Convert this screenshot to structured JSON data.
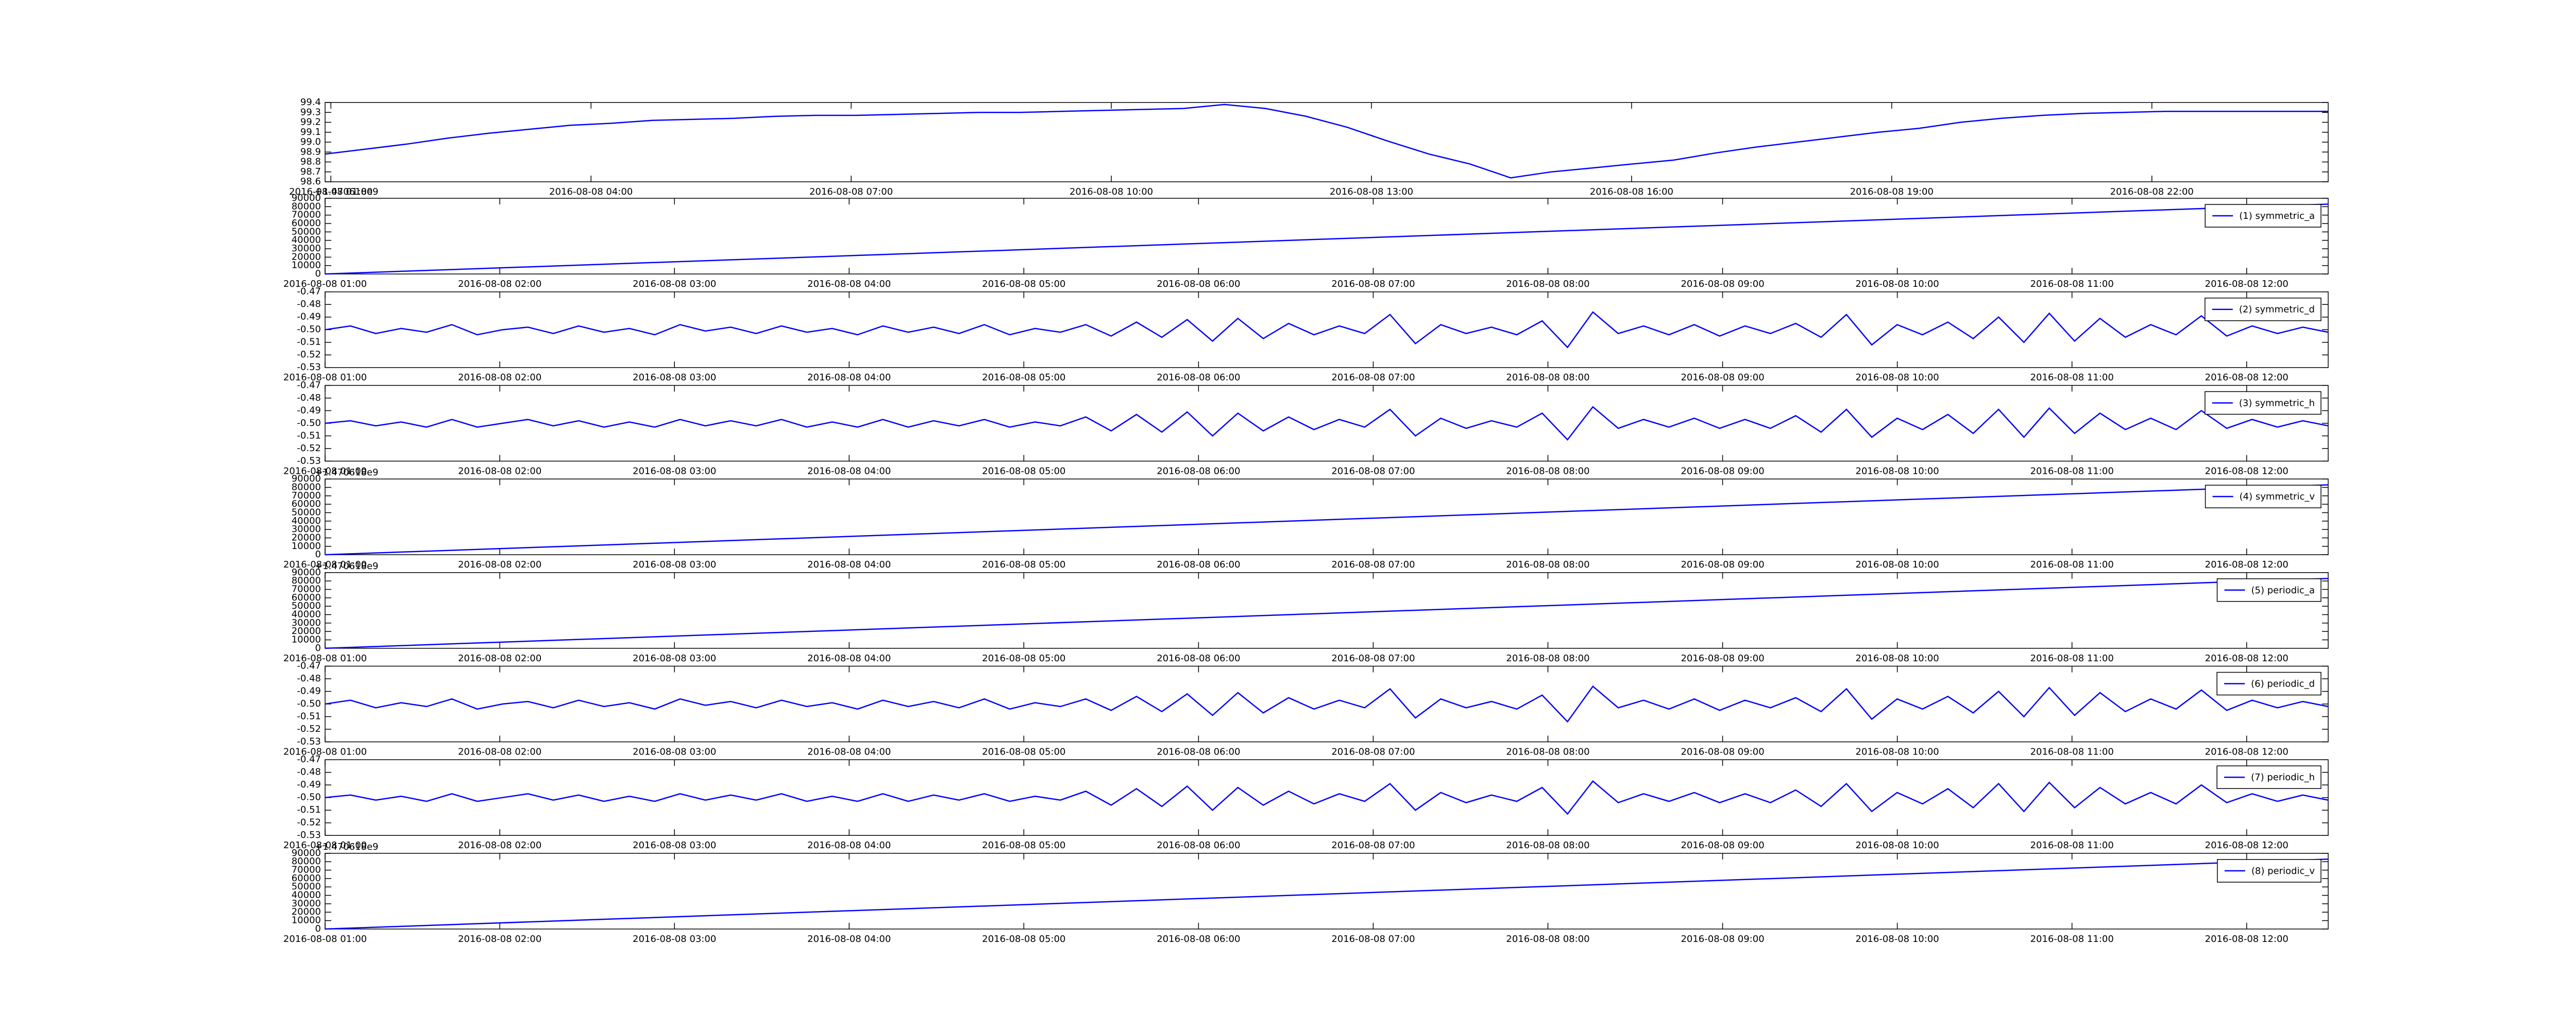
{
  "chart_data": [
    {
      "type": "line",
      "xlim": [
        "2016-08-08 00:56",
        "2016-08-09 00:02"
      ],
      "xticks": [
        "2016-08-08 01:00",
        "2016-08-08 04:00",
        "2016-08-08 07:00",
        "2016-08-08 10:00",
        "2016-08-08 13:00",
        "2016-08-08 16:00",
        "2016-08-08 19:00",
        "2016-08-08 22:00"
      ],
      "ylim": [
        98.6,
        99.4
      ],
      "yticks": [
        98.6,
        98.7,
        98.8,
        98.9,
        {
          "value": 99,
          "label": "99.0"
        },
        99.1,
        99.2,
        99.3,
        99.4
      ],
      "series": [
        {
          "color": "#0000ff",
          "values": [
            98.88,
            98.93,
            98.98,
            99.04,
            99.09,
            99.13,
            99.17,
            99.19,
            99.22,
            99.23,
            99.24,
            99.26,
            99.27,
            99.27,
            99.28,
            99.29,
            99.3,
            99.3,
            99.31,
            99.32,
            99.33,
            99.34,
            99.38,
            99.34,
            99.26,
            99.15,
            99.01,
            98.88,
            98.78,
            98.64,
            98.7,
            98.74,
            98.78,
            98.82,
            98.89,
            98.95,
            99.0,
            99.05,
            99.1,
            99.14,
            99.2,
            99.24,
            99.27,
            99.29,
            99.3,
            99.31,
            99.31,
            99.31,
            99.31,
            99.31
          ]
        }
      ]
    },
    {
      "type": "line",
      "xlim": [
        "2016-08-08 01:00",
        "2016-08-08 12:28"
      ],
      "xticks": [
        "2016-08-08 01:00",
        "2016-08-08 02:00",
        "2016-08-08 03:00",
        "2016-08-08 04:00",
        "2016-08-08 05:00",
        "2016-08-08 06:00",
        "2016-08-08 07:00",
        "2016-08-08 08:00",
        "2016-08-08 09:00",
        "2016-08-08 10:00",
        "2016-08-08 11:00",
        "2016-08-08 12:00"
      ],
      "ylim": [
        0,
        90000
      ],
      "yticks": [
        0,
        10000,
        20000,
        30000,
        40000,
        50000,
        60000,
        70000,
        80000,
        90000
      ],
      "y_offset": "+1.470618e9",
      "legend": "upper right",
      "series": [
        {
          "name": "(1) symmetric_a",
          "color": "#0000ff",
          "values": [
            0,
            83000
          ]
        }
      ]
    },
    {
      "type": "line",
      "xlim": [
        "2016-08-08 01:00",
        "2016-08-08 12:28"
      ],
      "xticks": [
        "2016-08-08 01:00",
        "2016-08-08 02:00",
        "2016-08-08 03:00",
        "2016-08-08 04:00",
        "2016-08-08 05:00",
        "2016-08-08 06:00",
        "2016-08-08 07:00",
        "2016-08-08 08:00",
        "2016-08-08 09:00",
        "2016-08-08 10:00",
        "2016-08-08 11:00",
        "2016-08-08 12:00"
      ],
      "ylim": [
        -0.53,
        -0.47
      ],
      "yticks": [
        -0.53,
        -0.52,
        -0.51,
        {
          "value": -0.5,
          "label": "-0.50"
        },
        -0.49,
        -0.48,
        -0.47
      ],
      "legend": "upper right",
      "series": [
        {
          "name": "(2) symmetric_d",
          "color": "#0000ff",
          "values": [
            -0.5,
            -0.497,
            -0.503,
            -0.499,
            -0.502,
            -0.496,
            -0.504,
            -0.5,
            -0.498,
            -0.503,
            -0.497,
            -0.502,
            -0.499,
            -0.504,
            -0.496,
            -0.501,
            -0.498,
            -0.503,
            -0.497,
            -0.502,
            -0.499,
            -0.504,
            -0.497,
            -0.502,
            -0.498,
            -0.503,
            -0.496,
            -0.504,
            -0.499,
            -0.502,
            -0.496,
            -0.505,
            -0.494,
            -0.506,
            -0.492,
            -0.509,
            -0.491,
            -0.507,
            -0.495,
            -0.504,
            -0.497,
            -0.503,
            -0.488,
            -0.511,
            -0.496,
            -0.503,
            -0.498,
            -0.504,
            -0.493,
            -0.514,
            -0.486,
            -0.503,
            -0.497,
            -0.504,
            -0.496,
            -0.505,
            -0.497,
            -0.503,
            -0.495,
            -0.506,
            -0.488,
            -0.512,
            -0.496,
            -0.504,
            -0.494,
            -0.507,
            -0.49,
            -0.51,
            -0.487,
            -0.509,
            -0.491,
            -0.506,
            -0.496,
            -0.504,
            -0.489,
            -0.505,
            -0.497,
            -0.503,
            -0.498,
            -0.502
          ]
        }
      ]
    },
    {
      "type": "line",
      "xlim": [
        "2016-08-08 01:00",
        "2016-08-08 12:28"
      ],
      "xticks": [
        "2016-08-08 01:00",
        "2016-08-08 02:00",
        "2016-08-08 03:00",
        "2016-08-08 04:00",
        "2016-08-08 05:00",
        "2016-08-08 06:00",
        "2016-08-08 07:00",
        "2016-08-08 08:00",
        "2016-08-08 09:00",
        "2016-08-08 10:00",
        "2016-08-08 11:00",
        "2016-08-08 12:00"
      ],
      "ylim": [
        -0.53,
        -0.47
      ],
      "yticks": [
        -0.53,
        -0.52,
        -0.51,
        {
          "value": -0.5,
          "label": "-0.50"
        },
        -0.49,
        -0.48,
        -0.47
      ],
      "legend": "upper right",
      "series": [
        {
          "name": "(3) symmetric_h",
          "color": "#0000ff",
          "values": [
            -0.5,
            -0.498,
            -0.502,
            -0.499,
            -0.503,
            -0.497,
            -0.503,
            -0.5,
            -0.497,
            -0.502,
            -0.498,
            -0.503,
            -0.499,
            -0.503,
            -0.497,
            -0.502,
            -0.498,
            -0.502,
            -0.497,
            -0.503,
            -0.499,
            -0.503,
            -0.497,
            -0.503,
            -0.498,
            -0.502,
            -0.497,
            -0.503,
            -0.499,
            -0.502,
            -0.495,
            -0.506,
            -0.493,
            -0.507,
            -0.491,
            -0.51,
            -0.492,
            -0.506,
            -0.495,
            -0.505,
            -0.497,
            -0.503,
            -0.489,
            -0.51,
            -0.496,
            -0.504,
            -0.498,
            -0.503,
            -0.492,
            -0.513,
            -0.487,
            -0.504,
            -0.497,
            -0.503,
            -0.496,
            -0.504,
            -0.497,
            -0.504,
            -0.494,
            -0.507,
            -0.489,
            -0.511,
            -0.496,
            -0.505,
            -0.493,
            -0.508,
            -0.489,
            -0.511,
            -0.488,
            -0.508,
            -0.492,
            -0.505,
            -0.496,
            -0.505,
            -0.49,
            -0.504,
            -0.497,
            -0.503,
            -0.498,
            -0.502
          ]
        }
      ]
    },
    {
      "type": "line",
      "xlim": [
        "2016-08-08 01:00",
        "2016-08-08 12:28"
      ],
      "xticks": [
        "2016-08-08 01:00",
        "2016-08-08 02:00",
        "2016-08-08 03:00",
        "2016-08-08 04:00",
        "2016-08-08 05:00",
        "2016-08-08 06:00",
        "2016-08-08 07:00",
        "2016-08-08 08:00",
        "2016-08-08 09:00",
        "2016-08-08 10:00",
        "2016-08-08 11:00",
        "2016-08-08 12:00"
      ],
      "ylim": [
        0,
        90000
      ],
      "yticks": [
        0,
        10000,
        20000,
        30000,
        40000,
        50000,
        60000,
        70000,
        80000,
        90000
      ],
      "y_offset": "+1.470618e9",
      "legend": "upper right",
      "series": [
        {
          "name": "(4) symmetric_v",
          "color": "#0000ff",
          "values": [
            0,
            83000
          ]
        }
      ]
    },
    {
      "type": "line",
      "xlim": [
        "2016-08-08 01:00",
        "2016-08-08 12:28"
      ],
      "xticks": [
        "2016-08-08 01:00",
        "2016-08-08 02:00",
        "2016-08-08 03:00",
        "2016-08-08 04:00",
        "2016-08-08 05:00",
        "2016-08-08 06:00",
        "2016-08-08 07:00",
        "2016-08-08 08:00",
        "2016-08-08 09:00",
        "2016-08-08 10:00",
        "2016-08-08 11:00",
        "2016-08-08 12:00"
      ],
      "ylim": [
        0,
        90000
      ],
      "yticks": [
        0,
        10000,
        20000,
        30000,
        40000,
        50000,
        60000,
        70000,
        80000,
        90000
      ],
      "y_offset": "+1.470618e9",
      "legend": "upper right",
      "series": [
        {
          "name": "(5) periodic_a",
          "color": "#0000ff",
          "values": [
            0,
            83000
          ]
        }
      ]
    },
    {
      "type": "line",
      "xlim": [
        "2016-08-08 01:00",
        "2016-08-08 12:28"
      ],
      "xticks": [
        "2016-08-08 01:00",
        "2016-08-08 02:00",
        "2016-08-08 03:00",
        "2016-08-08 04:00",
        "2016-08-08 05:00",
        "2016-08-08 06:00",
        "2016-08-08 07:00",
        "2016-08-08 08:00",
        "2016-08-08 09:00",
        "2016-08-08 10:00",
        "2016-08-08 11:00",
        "2016-08-08 12:00"
      ],
      "ylim": [
        -0.53,
        -0.47
      ],
      "yticks": [
        -0.53,
        -0.52,
        -0.51,
        {
          "value": -0.5,
          "label": "-0.50"
        },
        -0.49,
        -0.48,
        -0.47
      ],
      "legend": "upper right",
      "series": [
        {
          "name": "(6) periodic_d",
          "color": "#0000ff",
          "values": [
            -0.5,
            -0.497,
            -0.503,
            -0.499,
            -0.502,
            -0.496,
            -0.504,
            -0.5,
            -0.498,
            -0.503,
            -0.497,
            -0.502,
            -0.499,
            -0.504,
            -0.496,
            -0.501,
            -0.498,
            -0.503,
            -0.497,
            -0.502,
            -0.499,
            -0.504,
            -0.497,
            -0.502,
            -0.498,
            -0.503,
            -0.496,
            -0.504,
            -0.499,
            -0.502,
            -0.496,
            -0.505,
            -0.494,
            -0.506,
            -0.492,
            -0.509,
            -0.491,
            -0.507,
            -0.495,
            -0.504,
            -0.497,
            -0.503,
            -0.488,
            -0.511,
            -0.496,
            -0.503,
            -0.498,
            -0.504,
            -0.493,
            -0.514,
            -0.486,
            -0.503,
            -0.497,
            -0.504,
            -0.496,
            -0.505,
            -0.497,
            -0.503,
            -0.495,
            -0.506,
            -0.488,
            -0.512,
            -0.496,
            -0.504,
            -0.494,
            -0.507,
            -0.49,
            -0.51,
            -0.487,
            -0.509,
            -0.491,
            -0.506,
            -0.496,
            -0.504,
            -0.489,
            -0.505,
            -0.497,
            -0.503,
            -0.498,
            -0.502
          ]
        }
      ]
    },
    {
      "type": "line",
      "xlim": [
        "2016-08-08 01:00",
        "2016-08-08 12:28"
      ],
      "xticks": [
        "2016-08-08 01:00",
        "2016-08-08 02:00",
        "2016-08-08 03:00",
        "2016-08-08 04:00",
        "2016-08-08 05:00",
        "2016-08-08 06:00",
        "2016-08-08 07:00",
        "2016-08-08 08:00",
        "2016-08-08 09:00",
        "2016-08-08 10:00",
        "2016-08-08 11:00",
        "2016-08-08 12:00"
      ],
      "ylim": [
        -0.53,
        -0.47
      ],
      "yticks": [
        -0.53,
        -0.52,
        -0.51,
        {
          "value": -0.5,
          "label": "-0.50"
        },
        -0.49,
        -0.48,
        -0.47
      ],
      "legend": "upper right",
      "series": [
        {
          "name": "(7) periodic_h",
          "color": "#0000ff",
          "values": [
            -0.5,
            -0.498,
            -0.502,
            -0.499,
            -0.503,
            -0.497,
            -0.503,
            -0.5,
            -0.497,
            -0.502,
            -0.498,
            -0.503,
            -0.499,
            -0.503,
            -0.497,
            -0.502,
            -0.498,
            -0.502,
            -0.497,
            -0.503,
            -0.499,
            -0.503,
            -0.497,
            -0.503,
            -0.498,
            -0.502,
            -0.497,
            -0.503,
            -0.499,
            -0.502,
            -0.495,
            -0.506,
            -0.493,
            -0.507,
            -0.491,
            -0.51,
            -0.492,
            -0.506,
            -0.495,
            -0.505,
            -0.497,
            -0.503,
            -0.489,
            -0.51,
            -0.496,
            -0.504,
            -0.498,
            -0.503,
            -0.492,
            -0.513,
            -0.487,
            -0.504,
            -0.497,
            -0.503,
            -0.496,
            -0.504,
            -0.497,
            -0.504,
            -0.494,
            -0.507,
            -0.489,
            -0.511,
            -0.496,
            -0.505,
            -0.493,
            -0.508,
            -0.489,
            -0.511,
            -0.488,
            -0.508,
            -0.492,
            -0.505,
            -0.496,
            -0.505,
            -0.49,
            -0.504,
            -0.497,
            -0.503,
            -0.498,
            -0.502
          ]
        }
      ]
    },
    {
      "type": "line",
      "xlim": [
        "2016-08-08 01:00",
        "2016-08-08 12:28"
      ],
      "xticks": [
        "2016-08-08 01:00",
        "2016-08-08 02:00",
        "2016-08-08 03:00",
        "2016-08-08 04:00",
        "2016-08-08 05:00",
        "2016-08-08 06:00",
        "2016-08-08 07:00",
        "2016-08-08 08:00",
        "2016-08-08 09:00",
        "2016-08-08 10:00",
        "2016-08-08 11:00",
        "2016-08-08 12:00"
      ],
      "ylim": [
        0,
        90000
      ],
      "yticks": [
        0,
        10000,
        20000,
        30000,
        40000,
        50000,
        60000,
        70000,
        80000,
        90000
      ],
      "y_offset": "+1.470618e9",
      "legend": "upper right",
      "series": [
        {
          "name": "(8) periodic_v",
          "color": "#0000ff",
          "values": [
            0,
            83000
          ]
        }
      ]
    }
  ]
}
